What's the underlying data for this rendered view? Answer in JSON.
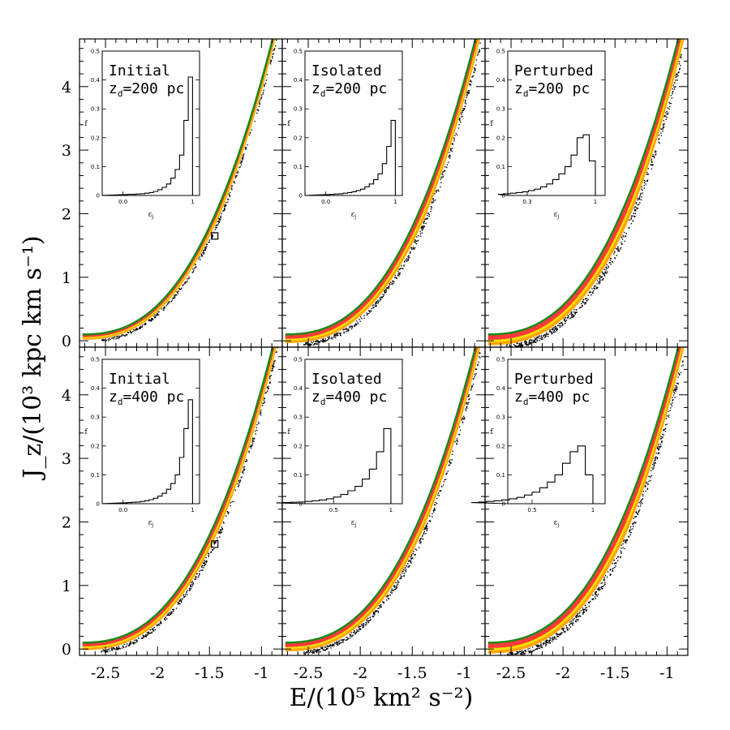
{
  "chart_data": {
    "type": "scatter",
    "xlabel": "E/(10⁵ km² s⁻²)",
    "ylabel": "J_z/(10³ kpc km s⁻¹)",
    "xlim": [
      -2.75,
      -0.8
    ],
    "ylim": [
      -0.1,
      4.75
    ],
    "x_ticks": [
      "-2.5",
      "-2",
      "-1.5",
      "-1"
    ],
    "x_tick_values": [
      -2.5,
      -2,
      -1.5,
      -1
    ],
    "y_ticks": [
      "0",
      "1",
      "2",
      "3",
      "4"
    ],
    "y_tick_values": [
      0,
      1,
      2,
      3,
      4
    ],
    "colors": {
      "envelope": "#1a8a1a",
      "outer_band": "#ffa500",
      "middle_band": "#f5e000",
      "inner_band": "#ff3a3a",
      "scatter": "#000000"
    },
    "panels": [
      {
        "row": 0,
        "col": 0,
        "label": "Initial",
        "zd_prefix": "z",
        "zd_sub": "d",
        "zd_value": "=200 pc",
        "spread": 0.35,
        "marker": {
          "x": -1.45,
          "y": 1.65
        },
        "inset": {
          "xlabel": "ε",
          "xlabel_sub": "j",
          "ylabel": "f",
          "x_ticks": [
            "0.0",
            "1"
          ],
          "x_tick_values": [
            0.0,
            1.0
          ],
          "x_range": [
            -0.3,
            1.1
          ],
          "y_ticks": [
            "0",
            "0.1",
            "0.2",
            "0.3",
            "0.4",
            "0.5"
          ],
          "y_range": [
            0,
            0.5
          ],
          "histogram": [
            0.003,
            0.004,
            0.004,
            0.005,
            0.006,
            0.008,
            0.01,
            0.014,
            0.02,
            0.028,
            0.04,
            0.06,
            0.09,
            0.14,
            0.26,
            0.41
          ]
        }
      },
      {
        "row": 0,
        "col": 1,
        "label": "Isolated",
        "zd_prefix": "z",
        "zd_sub": "d",
        "zd_value": "=200 pc",
        "spread": 0.75,
        "inset": {
          "xlabel": "ε",
          "xlabel_sub": "j",
          "ylabel": "f",
          "x_ticks": [
            "0.0",
            "1"
          ],
          "x_tick_values": [
            0.0,
            1.0
          ],
          "x_range": [
            -0.3,
            1.1
          ],
          "y_ticks": [
            "0",
            "0.1",
            "0.2",
            "0.3",
            "0.4",
            "0.5"
          ],
          "y_range": [
            0,
            0.5
          ],
          "histogram": [
            0.003,
            0.004,
            0.005,
            0.006,
            0.008,
            0.01,
            0.013,
            0.017,
            0.022,
            0.03,
            0.04,
            0.055,
            0.075,
            0.11,
            0.17,
            0.26
          ]
        }
      },
      {
        "row": 0,
        "col": 2,
        "label": "Perturbed",
        "zd_prefix": "z",
        "zd_sub": "d",
        "zd_value": "=200 pc",
        "spread": 1.0,
        "inset": {
          "xlabel": "ε",
          "xlabel_sub": "j",
          "ylabel": "f",
          "x_ticks": [
            "0.3",
            "1"
          ],
          "x_tick_values": [
            0.3,
            1.0
          ],
          "x_range": [
            0.1,
            1.1
          ],
          "y_ticks": [
            "0",
            "0.1",
            "0.2",
            "0.3",
            "0.4",
            "0.5"
          ],
          "y_range": [
            0,
            0.5
          ],
          "histogram": [
            0.004,
            0.006,
            0.008,
            0.01,
            0.013,
            0.017,
            0.022,
            0.03,
            0.04,
            0.055,
            0.075,
            0.1,
            0.14,
            0.2,
            0.21,
            0.12
          ]
        }
      },
      {
        "row": 1,
        "col": 0,
        "label": "Initial",
        "zd_prefix": "z",
        "zd_sub": "d",
        "zd_value": "=400 pc",
        "spread": 0.6,
        "marker": {
          "x": -1.45,
          "y": 1.65
        },
        "inset": {
          "xlabel": "ε",
          "xlabel_sub": "j",
          "ylabel": "f",
          "x_ticks": [
            "0.0",
            "1"
          ],
          "x_tick_values": [
            0.0,
            1.0
          ],
          "x_range": [
            -0.3,
            1.1
          ],
          "y_ticks": [
            "0",
            "0.1",
            "0.2",
            "0.3",
            "0.4",
            "0.5"
          ],
          "y_range": [
            0,
            0.5
          ],
          "histogram": [
            0.003,
            0.004,
            0.005,
            0.006,
            0.008,
            0.01,
            0.014,
            0.019,
            0.026,
            0.036,
            0.05,
            0.07,
            0.1,
            0.16,
            0.26,
            0.36
          ]
        }
      },
      {
        "row": 1,
        "col": 1,
        "label": "Isolated",
        "zd_prefix": "z",
        "zd_sub": "d",
        "zd_value": "=400 pc",
        "spread": 0.75,
        "inset": {
          "xlabel": "ε",
          "xlabel_sub": "j",
          "ylabel": "f",
          "x_ticks": [
            "0.5",
            "1"
          ],
          "x_tick_values": [
            0.5,
            1.0
          ],
          "x_range": [
            0.25,
            1.1
          ],
          "y_ticks": [
            "0",
            "0.1",
            "0.2",
            "0.3",
            "0.4",
            "0.5"
          ],
          "y_range": [
            0,
            0.5
          ],
          "histogram": [
            0.003,
            0.004,
            0.005,
            0.006,
            0.008,
            0.01,
            0.013,
            0.017,
            0.023,
            0.032,
            0.045,
            0.06,
            0.085,
            0.12,
            0.18,
            0.26
          ]
        }
      },
      {
        "row": 1,
        "col": 2,
        "label": "Perturbed",
        "zd_prefix": "z",
        "zd_sub": "d",
        "zd_value": "=400 pc",
        "spread": 1.0,
        "inset": {
          "xlabel": "ε",
          "xlabel_sub": "j",
          "ylabel": "f",
          "x_ticks": [
            "0.5",
            "1"
          ],
          "x_tick_values": [
            0.5,
            1.0
          ],
          "x_range": [
            0.3,
            1.1
          ],
          "y_ticks": [
            "0",
            "0.1",
            "0.2",
            "0.3",
            "0.4",
            "0.5"
          ],
          "y_range": [
            0,
            0.5
          ],
          "histogram": [
            0.004,
            0.006,
            0.008,
            0.01,
            0.013,
            0.017,
            0.022,
            0.03,
            0.04,
            0.055,
            0.075,
            0.1,
            0.14,
            0.18,
            0.2,
            0.1
          ]
        }
      }
    ]
  }
}
